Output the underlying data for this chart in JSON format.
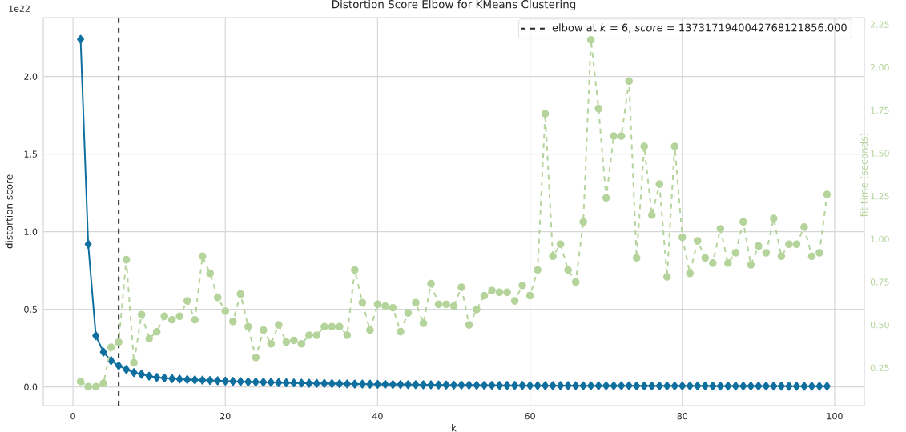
{
  "chart_data": {
    "type": "line",
    "title": "Distortion Score Elbow for KMeans Clustering",
    "xlabel": "k",
    "ylabel": "distortion score",
    "y2label": "fit time (seconds)",
    "annotations": [
      "1e22"
    ],
    "x": [
      1,
      2,
      3,
      4,
      5,
      6,
      7,
      8,
      9,
      10,
      11,
      12,
      13,
      14,
      15,
      16,
      17,
      18,
      19,
      20,
      21,
      22,
      23,
      24,
      25,
      26,
      27,
      28,
      29,
      30,
      31,
      32,
      33,
      34,
      35,
      36,
      37,
      38,
      39,
      40,
      41,
      42,
      43,
      44,
      45,
      46,
      47,
      48,
      49,
      50,
      51,
      52,
      53,
      54,
      55,
      56,
      57,
      58,
      59,
      60,
      61,
      62,
      63,
      64,
      65,
      66,
      67,
      68,
      69,
      70,
      71,
      72,
      73,
      74,
      75,
      76,
      77,
      78,
      79,
      80,
      81,
      82,
      83,
      84,
      85,
      86,
      87,
      88,
      89,
      90,
      91,
      92,
      93,
      94,
      95,
      96,
      97,
      98,
      99
    ],
    "series": [
      {
        "color": "#0f6f9f",
        "marker": "diamond",
        "line_style": "solid",
        "values": [
          2.24,
          0.92,
          0.33,
          0.225,
          0.17,
          0.137,
          0.113,
          0.093,
          0.082,
          0.07,
          0.062,
          0.058,
          0.054,
          0.051,
          0.048,
          0.046,
          0.044,
          0.042,
          0.04,
          0.038,
          0.036,
          0.035,
          0.033,
          0.032,
          0.031,
          0.03,
          0.028,
          0.027,
          0.026,
          0.025,
          0.024,
          0.023,
          0.023,
          0.022,
          0.021,
          0.02,
          0.019,
          0.019,
          0.018,
          0.017,
          0.017,
          0.016,
          0.016,
          0.015,
          0.015,
          0.014,
          0.014,
          0.013,
          0.013,
          0.012,
          0.012,
          0.012,
          0.011,
          0.011,
          0.011,
          0.01,
          0.01,
          0.01,
          0.01,
          0.009,
          0.009,
          0.009,
          0.009,
          0.009,
          0.009,
          0.008,
          0.008,
          0.008,
          0.008,
          0.008,
          0.008,
          0.008,
          0.008,
          0.007,
          0.007,
          0.007,
          0.007,
          0.007,
          0.007,
          0.007,
          0.007,
          0.007,
          0.007,
          0.006,
          0.006,
          0.006,
          0.006,
          0.006,
          0.006,
          0.006,
          0.006,
          0.006,
          0.006,
          0.005,
          0.005,
          0.005,
          0.005,
          0.005,
          0.005
        ]
      },
      {
        "color": "#b5d49c",
        "marker": "circle",
        "line_style": "dashed",
        "axis": "y2",
        "values": [
          0.17,
          0.14,
          0.14,
          0.16,
          0.37,
          0.4,
          0.88,
          0.28,
          0.56,
          0.42,
          0.46,
          0.55,
          0.53,
          0.55,
          0.64,
          0.53,
          0.9,
          0.8,
          0.66,
          0.58,
          0.52,
          0.68,
          0.49,
          0.31,
          0.47,
          0.39,
          0.5,
          0.4,
          0.41,
          0.39,
          0.44,
          0.44,
          0.49,
          0.49,
          0.49,
          0.44,
          0.82,
          0.63,
          0.47,
          0.62,
          0.61,
          0.6,
          0.46,
          0.57,
          0.63,
          0.51,
          0.74,
          0.62,
          0.62,
          0.61,
          0.72,
          0.5,
          0.59,
          0.67,
          0.7,
          0.69,
          0.69,
          0.64,
          0.73,
          0.67,
          0.82,
          1.73,
          0.9,
          0.97,
          0.82,
          0.75,
          1.1,
          2.16,
          1.76,
          1.24,
          1.6,
          1.6,
          1.92,
          0.89,
          1.54,
          1.14,
          1.32,
          0.78,
          1.54,
          1.01,
          0.8,
          0.99,
          0.89,
          0.86,
          1.06,
          0.86,
          0.92,
          1.1,
          0.85,
          0.96,
          0.92,
          1.12,
          0.9,
          0.97,
          0.97,
          1.07,
          0.9,
          0.92,
          1.26
        ]
      }
    ],
    "ref_lines": [
      {
        "axis": "x",
        "value": 6,
        "label": "elbow at *k* = 6, *score* = 1373171940042768121856.000",
        "color": "#262626",
        "line_style": "dashed"
      }
    ],
    "xlim": [
      -3.9,
      103.9
    ],
    "ylim": [
      -0.12,
      2.38
    ],
    "y2lim": [
      0.03,
      2.29
    ],
    "xticks": [
      0,
      20,
      40,
      60,
      80,
      100
    ],
    "yticks": [
      {
        "value": 0,
        "label": "0.0"
      },
      {
        "value": 0.5,
        "label": "0.5"
      },
      {
        "value": 1,
        "label": "1.0"
      },
      {
        "value": 1.5,
        "label": "1.5"
      },
      {
        "value": 2,
        "label": "2.0"
      }
    ],
    "y2ticks": [
      0.25,
      {
        "value": 0.5,
        "label": "0.50"
      },
      0.75,
      {
        "value": 1,
        "label": "1.00"
      },
      1.25,
      {
        "value": 1.5,
        "label": "1.50"
      },
      1.75,
      {
        "value": 2,
        "label": "2.00"
      },
      2.25
    ],
    "grid": true,
    "legend": "top right"
  }
}
